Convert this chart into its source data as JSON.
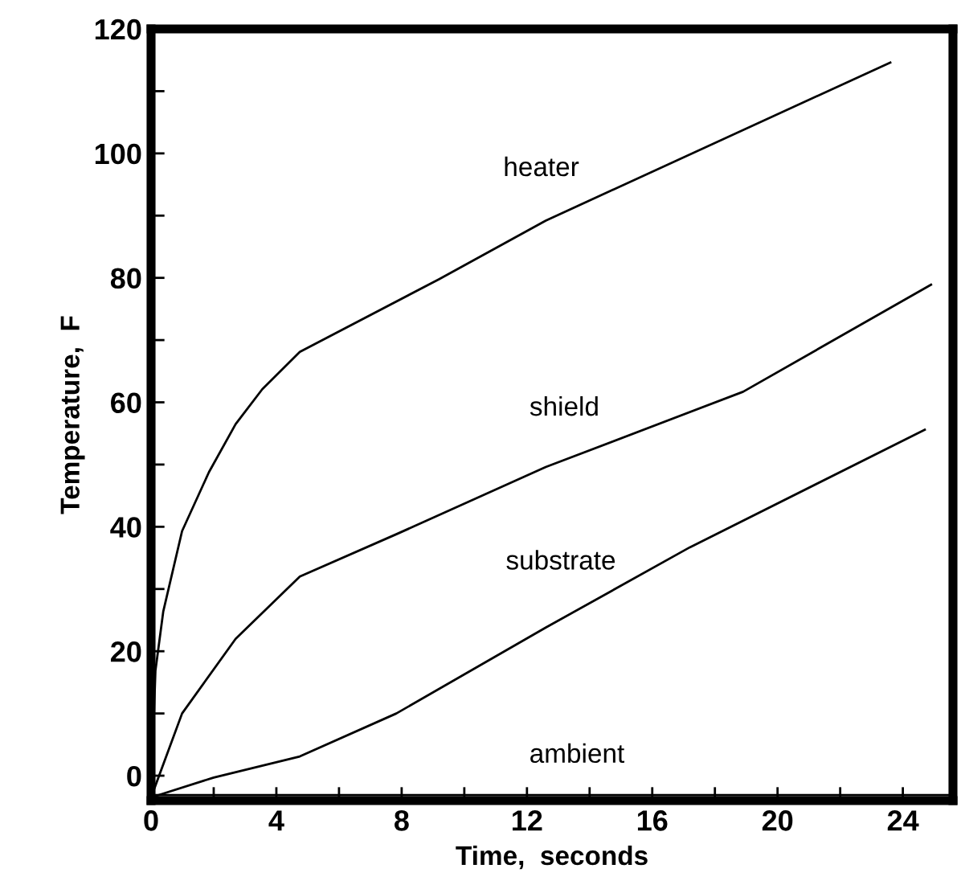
{
  "chart_data": {
    "type": "line",
    "xlabel": "Time,  seconds",
    "ylabel": "Temperature,  F",
    "xlim": [
      0,
      25.6
    ],
    "ylim": [
      -4,
      120
    ],
    "xticks": [
      0,
      {
        "value": 2,
        "label": null
      },
      4,
      {
        "value": 6,
        "label": null
      },
      8,
      {
        "value": 10,
        "label": null
      },
      12,
      {
        "value": 14,
        "label": null
      },
      16,
      {
        "value": 18,
        "label": null
      },
      20,
      {
        "value": 22,
        "label": null
      },
      24
    ],
    "yticks": [
      0,
      {
        "value": 10,
        "label": null
      },
      20,
      {
        "value": 30,
        "label": null
      },
      40,
      {
        "value": 50,
        "label": null
      },
      60,
      {
        "value": 70,
        "label": null
      },
      80,
      {
        "value": 90,
        "label": null
      },
      100,
      {
        "value": 110,
        "label": null
      },
      120
    ],
    "grid": false,
    "legend": false,
    "marker": "none",
    "line_style": "solid",
    "series": [
      {
        "name": "heater",
        "color": "#000000",
        "x": [
          0,
          0.14,
          0.39,
          0.99,
          1.85,
          2.7,
          3.55,
          4.75,
          9.2,
          12.6,
          23.6
        ],
        "values": [
          -3.5,
          16.9,
          26.4,
          39.3,
          48.8,
          56.5,
          62.1,
          68.1,
          79.8,
          89.2,
          114.6
        ]
      },
      {
        "name": "shield",
        "color": "#000000",
        "x": [
          0,
          0.99,
          2.7,
          4.75,
          7.83,
          12.6,
          18.9,
          24.9
        ],
        "values": [
          -3.5,
          10.0,
          22.0,
          32.0,
          38.8,
          49.6,
          61.7,
          78.9
        ]
      },
      {
        "name": "substrate",
        "color": "#000000",
        "x": [
          0,
          2.0,
          4.75,
          7.83,
          12.6,
          17.2,
          24.7
        ],
        "values": [
          -3.5,
          -0.3,
          3.1,
          10.0,
          23.8,
          36.7,
          55.6
        ]
      },
      {
        "name": "ambient",
        "color": "#000000",
        "x": [
          0,
          25.6
        ],
        "values": [
          -3.1,
          -3.1
        ]
      }
    ]
  }
}
